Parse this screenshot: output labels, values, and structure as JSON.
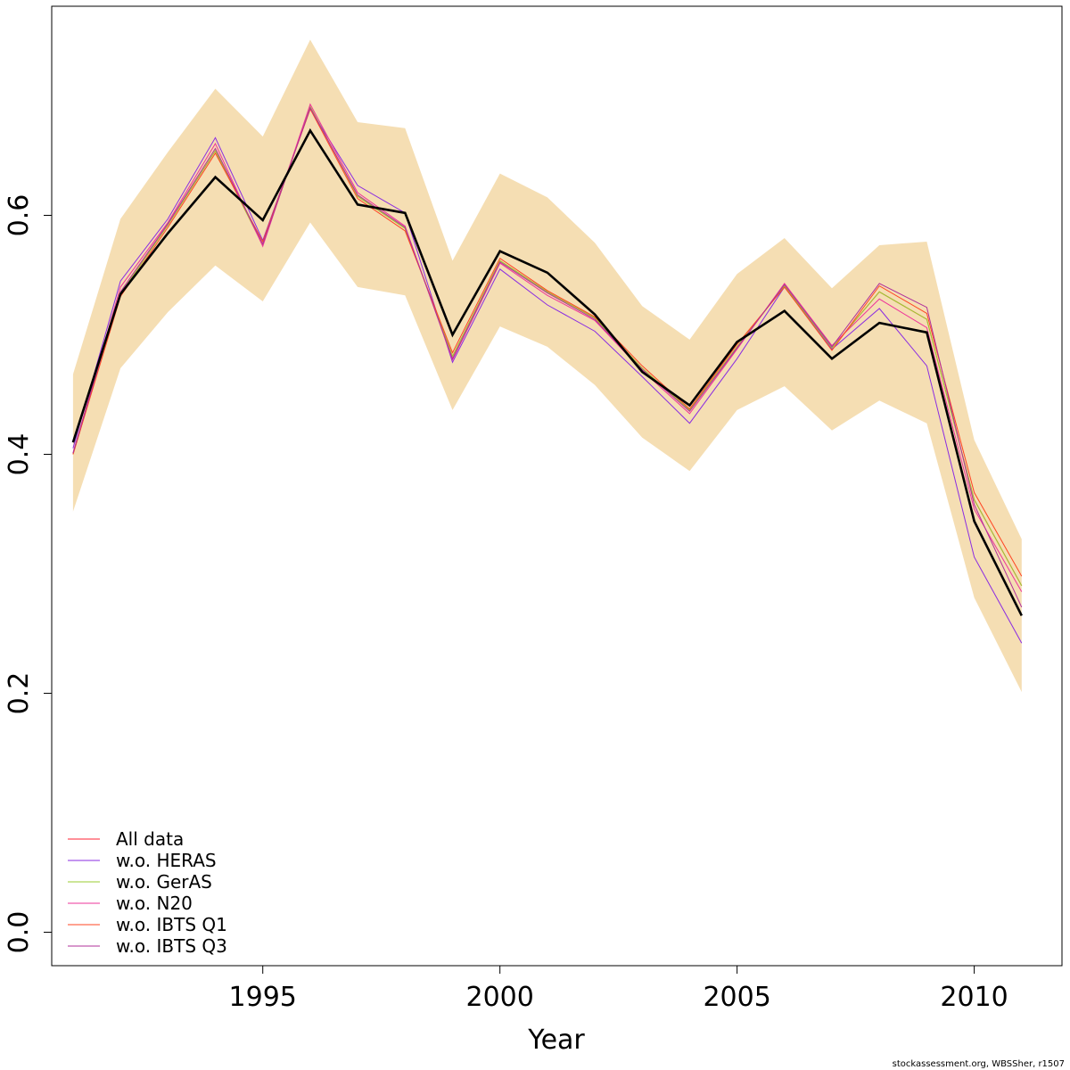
{
  "chart_data": {
    "type": "line",
    "xlabel": "Year",
    "ylabel": "",
    "xlim": [
      1990.55,
      2011.85
    ],
    "ylim": [
      -0.028,
      0.775
    ],
    "x_ticks": [
      1995,
      2000,
      2005,
      2010
    ],
    "y_ticks": [
      0.0,
      0.2,
      0.4,
      0.6
    ],
    "x_tick_labels": [
      "1995",
      "2000",
      "2005",
      "2010"
    ],
    "y_tick_labels": [
      "0.0",
      "0.2",
      "0.4",
      "0.6"
    ],
    "grid": false,
    "legend_position": "bottom-left",
    "x": [
      1991,
      1992,
      1993,
      1994,
      1995,
      1996,
      1997,
      1998,
      1999,
      2000,
      2001,
      2002,
      2003,
      2004,
      2005,
      2006,
      2007,
      2008,
      2009,
      2010,
      2011
    ],
    "confidence_band": {
      "color": "#F5DEB3",
      "upper": [
        0.467,
        0.597,
        0.653,
        0.706,
        0.666,
        0.747,
        0.678,
        0.673,
        0.562,
        0.635,
        0.615,
        0.577,
        0.524,
        0.496,
        0.551,
        0.581,
        0.539,
        0.575,
        0.578,
        0.412,
        0.329
      ],
      "lower": [
        0.352,
        0.472,
        0.519,
        0.558,
        0.528,
        0.594,
        0.54,
        0.533,
        0.437,
        0.507,
        0.49,
        0.458,
        0.414,
        0.386,
        0.437,
        0.457,
        0.42,
        0.445,
        0.426,
        0.28,
        0.201
      ]
    },
    "main_series": {
      "color": "#000000",
      "values": [
        0.41,
        0.534,
        0.585,
        0.632,
        0.596,
        0.671,
        0.609,
        0.602,
        0.5,
        0.57,
        0.552,
        0.517,
        0.469,
        0.441,
        0.494,
        0.52,
        0.48,
        0.51,
        0.502,
        0.344,
        0.265
      ]
    },
    "series": [
      {
        "name": "All data",
        "color": "#FF2233",
        "values": [
          0.4,
          0.534,
          0.592,
          0.654,
          0.575,
          0.691,
          0.616,
          0.589,
          0.482,
          0.562,
          0.536,
          0.514,
          0.472,
          0.437,
          0.49,
          0.541,
          0.489,
          0.536,
          0.513,
          0.362,
          0.29
        ]
      },
      {
        "name": "w.o. HERAS",
        "color": "#8A2BE2",
        "values": [
          0.405,
          0.545,
          0.597,
          0.665,
          0.579,
          0.689,
          0.625,
          0.602,
          0.477,
          0.555,
          0.525,
          0.503,
          0.465,
          0.426,
          0.48,
          0.54,
          0.488,
          0.522,
          0.474,
          0.314,
          0.242
        ]
      },
      {
        "name": "w.o. GerAS",
        "color": "#9ACD32",
        "values": [
          0.4,
          0.534,
          0.592,
          0.654,
          0.575,
          0.691,
          0.616,
          0.589,
          0.482,
          0.562,
          0.536,
          0.514,
          0.472,
          0.437,
          0.49,
          0.541,
          0.489,
          0.536,
          0.513,
          0.362,
          0.29
        ]
      },
      {
        "name": "w.o. N20",
        "color": "#EE3399",
        "values": [
          0.401,
          0.54,
          0.594,
          0.66,
          0.574,
          0.693,
          0.619,
          0.591,
          0.479,
          0.56,
          0.533,
          0.512,
          0.47,
          0.434,
          0.488,
          0.543,
          0.491,
          0.53,
          0.506,
          0.354,
          0.285
        ]
      },
      {
        "name": "w.o. IBTS Q1",
        "color": "#FF4422",
        "values": [
          0.4,
          0.532,
          0.59,
          0.652,
          0.578,
          0.689,
          0.614,
          0.587,
          0.485,
          0.564,
          0.537,
          0.515,
          0.474,
          0.438,
          0.492,
          0.54,
          0.487,
          0.541,
          0.518,
          0.368,
          0.298
        ]
      },
      {
        "name": "w.o. IBTS Q3",
        "color": "#B0309A",
        "values": [
          0.401,
          0.536,
          0.593,
          0.656,
          0.576,
          0.69,
          0.617,
          0.59,
          0.48,
          0.561,
          0.535,
          0.513,
          0.471,
          0.436,
          0.489,
          0.542,
          0.49,
          0.543,
          0.523,
          0.358,
          0.272
        ]
      }
    ]
  },
  "footnote": "stockassessment.org, WBSSher, r1507"
}
